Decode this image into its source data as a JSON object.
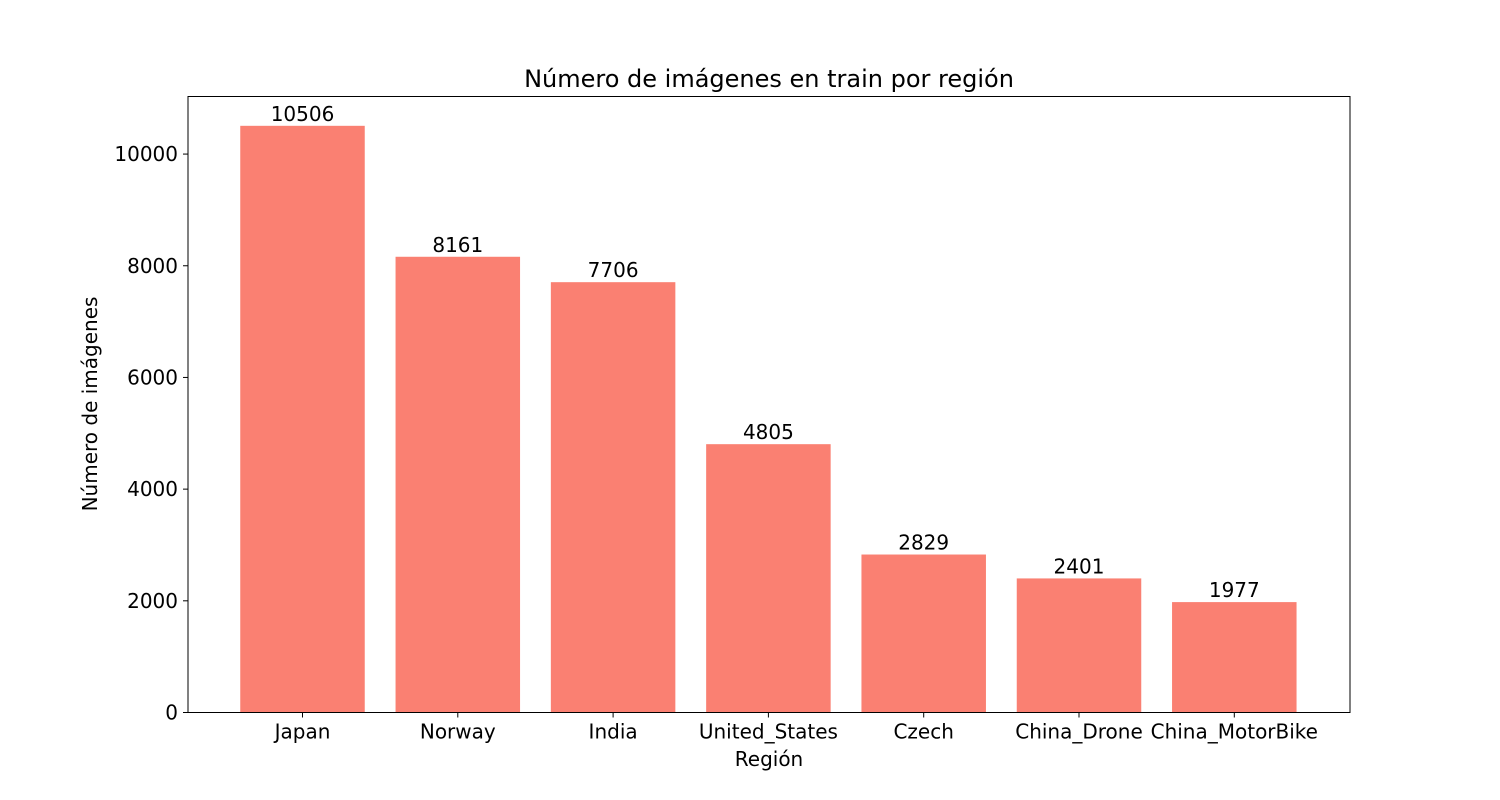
{
  "chart_data": {
    "type": "bar",
    "title": "Número de imágenes en train por región",
    "xlabel": "Región",
    "ylabel": "Número de imágenes",
    "categories": [
      "Japan",
      "Norway",
      "India",
      "United_States",
      "Czech",
      "China_Drone",
      "China_MotorBike"
    ],
    "values": [
      10506,
      8161,
      7706,
      4805,
      2829,
      2401,
      1977
    ],
    "ylim": [
      0,
      11031
    ],
    "yticks": [
      0,
      2000,
      4000,
      6000,
      8000,
      10000
    ],
    "ytick_labels": [
      "0",
      "2000",
      "4000",
      "6000",
      "8000",
      "10000"
    ],
    "bar_color": "#fa8072",
    "grid": false,
    "legend": "none"
  }
}
